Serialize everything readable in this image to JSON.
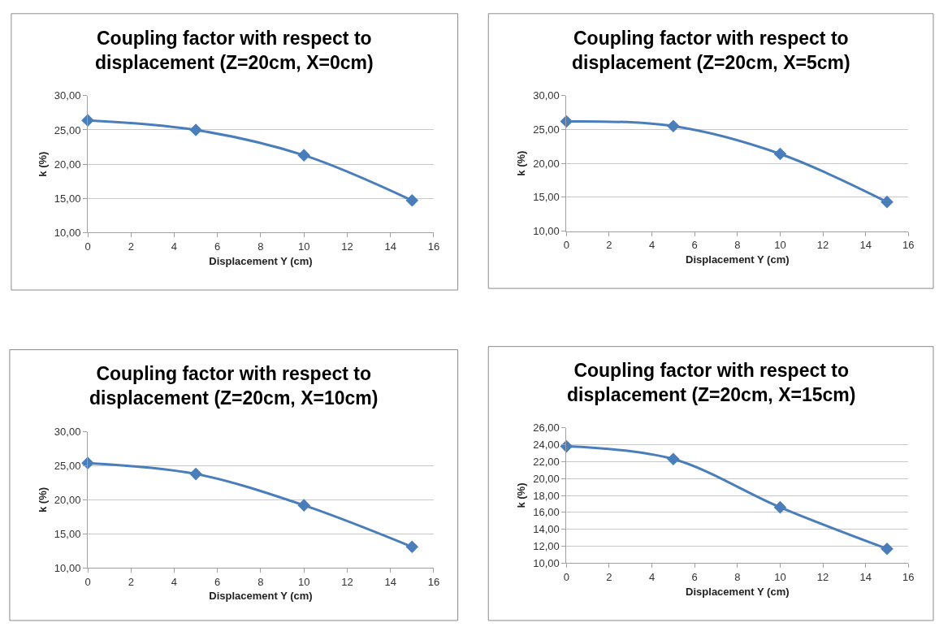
{
  "chart_data": [
    {
      "type": "line",
      "title": "Coupling factor with respect to displacement (Z=20cm, X=0cm)",
      "xlabel": "Displacement Y (cm)",
      "ylabel": "k (%)",
      "x": [
        0,
        5,
        10,
        15
      ],
      "series": [
        {
          "color": "#4a7ebb",
          "values": [
            26.4,
            25.0,
            21.3,
            14.7
          ]
        }
      ],
      "xlim": [
        0,
        16
      ],
      "xticks": [
        0,
        2,
        4,
        6,
        8,
        10,
        12,
        14,
        16
      ],
      "ylim": [
        10,
        30
      ],
      "yticks": [
        {
          "value": 10,
          "label": "10,00"
        },
        {
          "value": 15,
          "label": "15,00"
        },
        {
          "value": 20,
          "label": "20,00"
        },
        {
          "value": 25,
          "label": "25,00"
        },
        {
          "value": 30,
          "label": "30,00"
        }
      ],
      "grid": "y",
      "marker": "diamond",
      "line_style": "solid"
    },
    {
      "type": "line",
      "title": "Coupling factor with respect to displacement (Z=20cm, X=5cm)",
      "xlabel": "Displacement Y (cm)",
      "ylabel": "k (%)",
      "x": [
        0,
        5,
        10,
        15
      ],
      "series": [
        {
          "color": "#4a7ebb",
          "values": [
            26.2,
            25.5,
            21.4,
            14.3
          ]
        }
      ],
      "xlim": [
        0,
        16
      ],
      "xticks": [
        0,
        2,
        4,
        6,
        8,
        10,
        12,
        14,
        16
      ],
      "ylim": [
        10,
        30
      ],
      "yticks": [
        {
          "value": 10,
          "label": "10,00"
        },
        {
          "value": 15,
          "label": "15,00"
        },
        {
          "value": 20,
          "label": "20,00"
        },
        {
          "value": 25,
          "label": "25,00"
        },
        {
          "value": 30,
          "label": "30,00"
        }
      ],
      "grid": "y",
      "marker": "diamond",
      "line_style": "solid"
    },
    {
      "type": "line",
      "title": "Coupling factor with respect to displacement (Z=20cm, X=10cm)",
      "xlabel": "Displacement Y (cm)",
      "ylabel": "k (%)",
      "x": [
        0,
        5,
        10,
        15
      ],
      "series": [
        {
          "color": "#4a7ebb",
          "values": [
            25.4,
            23.8,
            19.2,
            13.1
          ]
        }
      ],
      "xlim": [
        0,
        16
      ],
      "xticks": [
        0,
        2,
        4,
        6,
        8,
        10,
        12,
        14,
        16
      ],
      "ylim": [
        10,
        30
      ],
      "yticks": [
        {
          "value": 10,
          "label": "10,00"
        },
        {
          "value": 15,
          "label": "15,00"
        },
        {
          "value": 20,
          "label": "20,00"
        },
        {
          "value": 25,
          "label": "25,00"
        },
        {
          "value": 30,
          "label": "30,00"
        }
      ],
      "grid": "y",
      "marker": "diamond",
      "line_style": "solid"
    },
    {
      "type": "line",
      "title": "Coupling factor with respect to displacement (Z=20cm, X=15cm)",
      "xlabel": "Displacement Y (cm)",
      "ylabel": "k (%)",
      "x": [
        0,
        5,
        10,
        15
      ],
      "series": [
        {
          "color": "#4a7ebb",
          "values": [
            23.8,
            22.3,
            16.6,
            11.7
          ]
        }
      ],
      "xlim": [
        0,
        16
      ],
      "xticks": [
        0,
        2,
        4,
        6,
        8,
        10,
        12,
        14,
        16
      ],
      "ylim": [
        10,
        26
      ],
      "yticks": [
        {
          "value": 10,
          "label": "10,00"
        },
        {
          "value": 12,
          "label": "12,00"
        },
        {
          "value": 14,
          "label": "14,00"
        },
        {
          "value": 16,
          "label": "16,00"
        },
        {
          "value": 18,
          "label": "18,00"
        },
        {
          "value": 20,
          "label": "20,00"
        },
        {
          "value": 22,
          "label": "22,00"
        },
        {
          "value": 24,
          "label": "24,00"
        },
        {
          "value": 26,
          "label": "26,00"
        }
      ],
      "grid": "y",
      "marker": "diamond",
      "line_style": "solid"
    }
  ]
}
